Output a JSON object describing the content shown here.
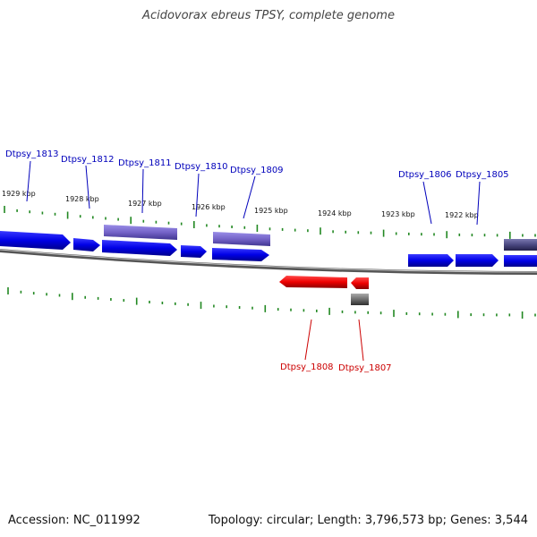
{
  "title": "Acidovorax ebreus TPSY, complete genome",
  "footer": {
    "accession": "Accession: NC_011992",
    "summary": "Topology: circular; Length: 3,796,573 bp; Genes: 3,544"
  },
  "colors": {
    "background": "#ffffff",
    "forward_gene": "#0000ee",
    "forward_gene_highlight": "#7766cc",
    "reverse_gene": "#ee0000",
    "reverse_gene_other": "#666666",
    "backbone": "#777777",
    "tick": "#228822",
    "forward_label": "#0000bb",
    "reverse_label": "#cc0000"
  },
  "scale_labels": [
    "1929 kbp",
    "1928 kbp",
    "1927 kbp",
    "1926 kbp",
    "1925 kbp",
    "1924 kbp",
    "1923 kbp",
    "1922 kbp"
  ],
  "forward_gene_labels": [
    "Dtpsy_1813",
    "Dtpsy_1812",
    "Dtpsy_1811",
    "Dtpsy_1810",
    "Dtpsy_1809",
    "Dtpsy_1806",
    "Dtpsy_1805"
  ],
  "reverse_gene_labels": [
    "Dtpsy_1808",
    "Dtpsy_1807"
  ]
}
